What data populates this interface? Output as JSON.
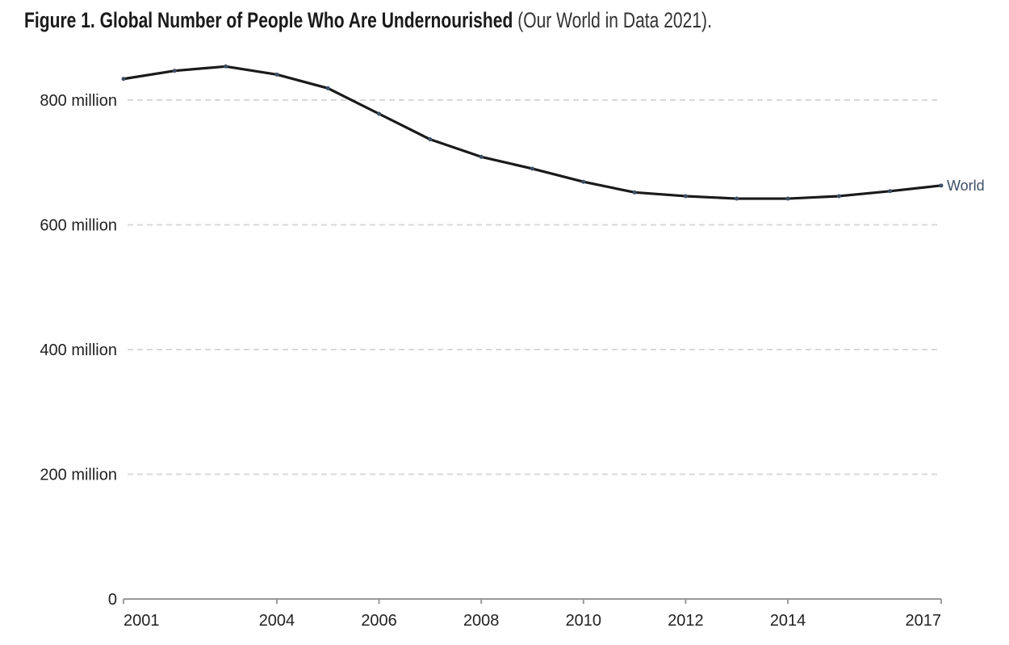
{
  "title": {
    "bold": "Figure 1. Global Number of People Who Are Undernourished",
    "source": " (Our World in Data 2021)."
  },
  "chart_data": {
    "type": "line",
    "title": "Figure 1. Global Number of People Who Are Undernourished (Our World in Data 2021).",
    "xlabel": "",
    "ylabel": "",
    "x": [
      2001,
      2002,
      2003,
      2004,
      2005,
      2006,
      2007,
      2008,
      2009,
      2010,
      2011,
      2012,
      2013,
      2014,
      2015,
      2016,
      2017
    ],
    "series": [
      {
        "name": "World",
        "color": "#1a1a1a",
        "marker_color": "#3d4f66",
        "values": [
          834,
          847,
          854,
          841,
          819,
          778,
          737,
          709,
          690,
          669,
          652,
          646,
          642,
          642,
          646,
          654,
          663
        ]
      }
    ],
    "ylim": [
      0,
      860
    ],
    "xlim": [
      2001,
      2017
    ],
    "yticks": [
      0,
      200,
      400,
      600,
      800
    ],
    "ytick_labels": [
      "0",
      "200 million",
      "400 million",
      "600 million",
      "800 million"
    ],
    "xticks": [
      2001,
      2004,
      2006,
      2008,
      2010,
      2012,
      2014,
      2017
    ],
    "xtick_labels": [
      "2001",
      "2004",
      "2006",
      "2008",
      "2010",
      "2012",
      "2014",
      "2017"
    ],
    "grid": "horizontal dashed",
    "legend": "inline label at line end (right)"
  }
}
